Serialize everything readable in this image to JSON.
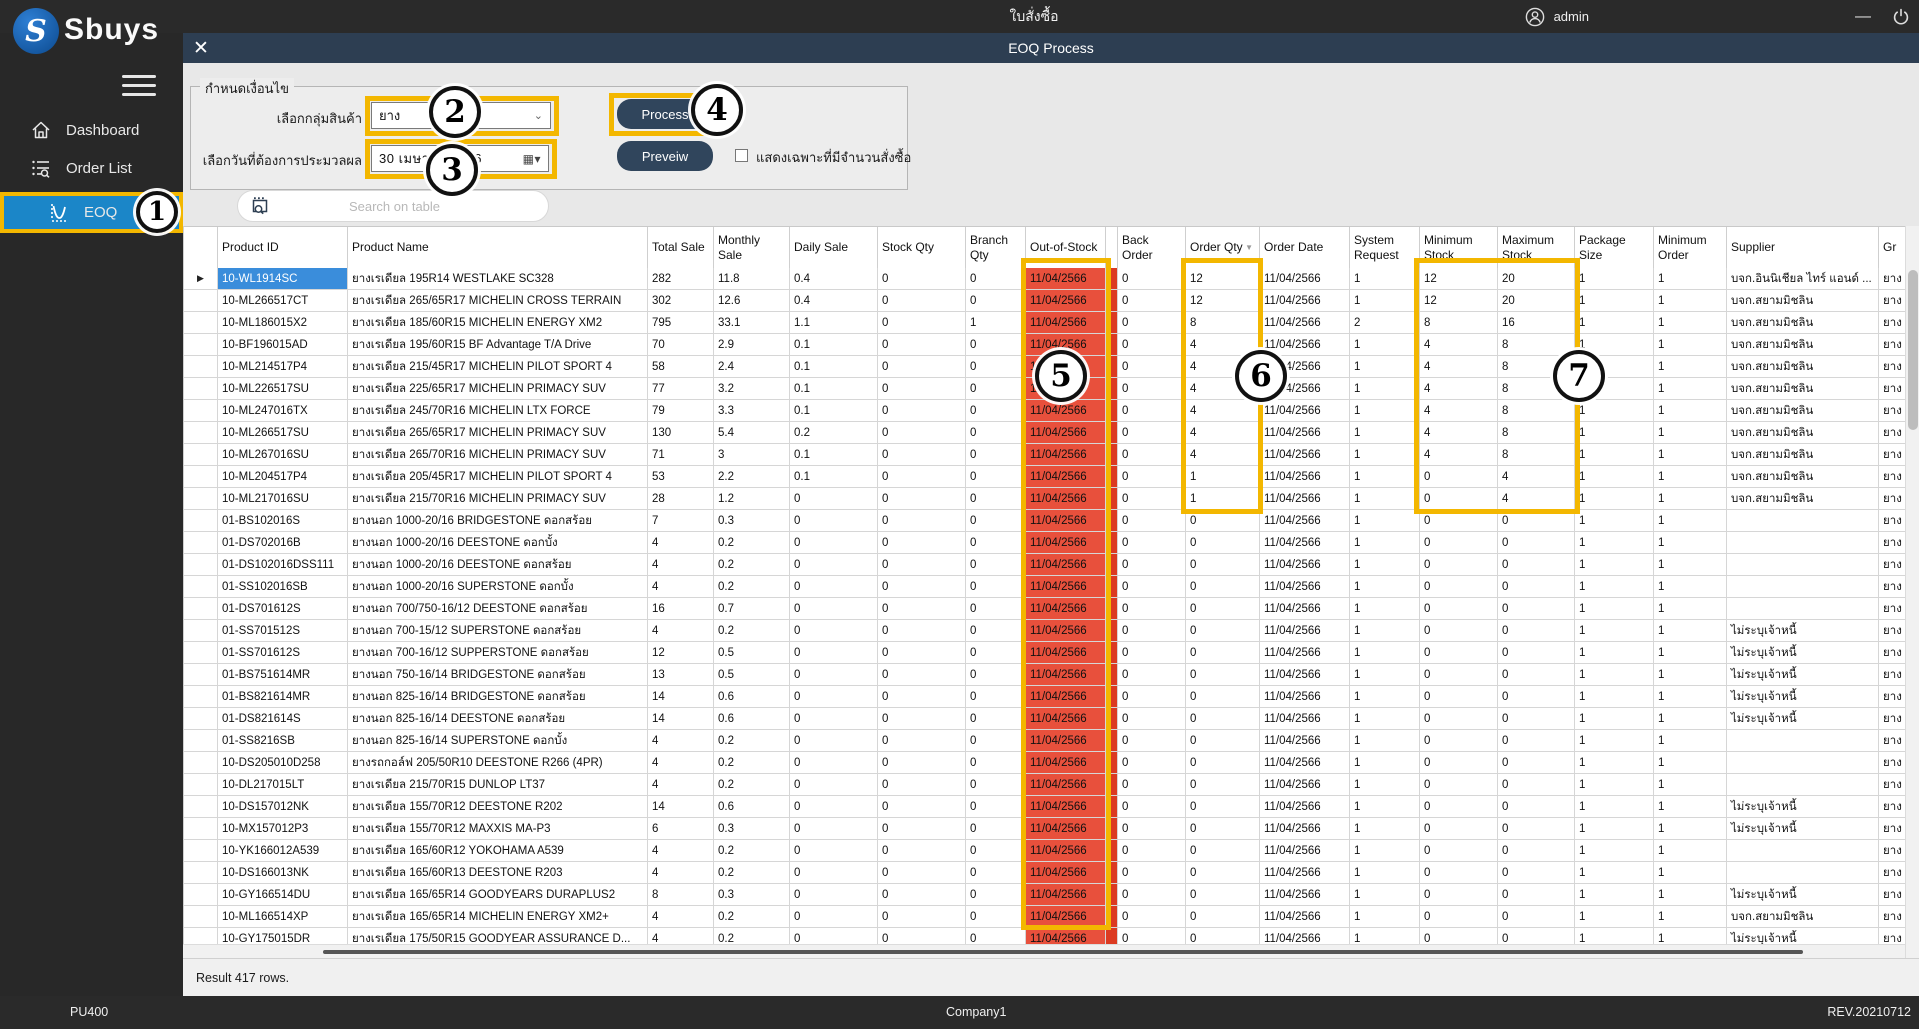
{
  "app": {
    "top_title": "ใบสั่งซื้อ",
    "user": "admin",
    "window_title": "EOQ Process",
    "result_text": "Result 417 rows.",
    "screen_code": "PU400",
    "company": "Company1",
    "revision": "REV.20210712"
  },
  "brand": {
    "name": "Sbuys",
    "initial": "S"
  },
  "sidebar": {
    "items": [
      {
        "label": "Dashboard"
      },
      {
        "label": "Order List"
      },
      {
        "label": "EOQ",
        "active": true
      }
    ]
  },
  "form": {
    "legend": "กำหนดเงื่อนไข",
    "product_group_label": "เลือกกลุ่มสินค้า",
    "product_group_value": "ยาง",
    "date_label": "เลือกวันที่ต้องการประมวลผล",
    "date_value": "30   เมษายน   2566",
    "process_label": "Process",
    "preview_label": "Preveiw",
    "checkbox_label": "แสดงเฉพาะที่มีจำนวนสั่งซื้อ",
    "checkbox_checked": false,
    "search_placeholder": "Search on table"
  },
  "table": {
    "columns": [
      "",
      "Product ID",
      "Product Name",
      "Total Sale",
      "Monthly Sale",
      "Daily Sale",
      "Stock Qty",
      "Branch Qty",
      "Out-of-Stock",
      "",
      "Back Order",
      "Order Qty",
      "Order Date",
      "System Request",
      "Minimum Stock",
      "Maximum Stock",
      "Package Size",
      "Minimum Order",
      "Supplier",
      "Gr"
    ],
    "sorted_column": "Order Qty",
    "rows": [
      [
        "10-WL1914SC",
        "ยางเรเดียล 195R14 WESTLAKE SC328",
        "282",
        "11.8",
        "0.4",
        "0",
        "0",
        "11/04/2566",
        "0",
        "12",
        "11/04/2566",
        "1",
        "12",
        "20",
        "1",
        "1",
        "บจก.อินนิเชียล ไทร์ แอนด์ ...",
        "ยาง"
      ],
      [
        "10-ML266517CT",
        "ยางเรเดียล 265/65R17 MICHELIN CROSS TERRAIN",
        "302",
        "12.6",
        "0.4",
        "0",
        "0",
        "11/04/2566",
        "0",
        "12",
        "11/04/2566",
        "1",
        "12",
        "20",
        "1",
        "1",
        "บจก.สยามมิชลิน",
        "ยาง"
      ],
      [
        "10-ML186015X2",
        "ยางเรเดียล 185/60R15 MICHELIN ENERGY XM2",
        "795",
        "33.1",
        "1.1",
        "0",
        "1",
        "11/04/2566",
        "0",
        "8",
        "11/04/2566",
        "2",
        "8",
        "16",
        "1",
        "1",
        "บจก.สยามมิชลิน",
        "ยาง"
      ],
      [
        "10-BF196015AD",
        "ยางเรเดียล 195/60R15 BF Advantage T/A Drive",
        "70",
        "2.9",
        "0.1",
        "0",
        "0",
        "11/04/2566",
        "0",
        "4",
        "11/04/2566",
        "1",
        "4",
        "8",
        "1",
        "1",
        "บจก.สยามมิชลิน",
        "ยาง"
      ],
      [
        "10-ML214517P4",
        "ยางเรเดียล 215/45R17 MICHELIN PILOT SPORT 4",
        "58",
        "2.4",
        "0.1",
        "0",
        "0",
        "11/04/2566",
        "0",
        "4",
        "11/04/2566",
        "1",
        "4",
        "8",
        "1",
        "1",
        "บจก.สยามมิชลิน",
        "ยาง"
      ],
      [
        "10-ML226517SU",
        "ยางเรเดียล 225/65R17 MICHELIN PRIMACY SUV",
        "77",
        "3.2",
        "0.1",
        "0",
        "0",
        "11/04/2566",
        "0",
        "4",
        "11/04/2566",
        "1",
        "4",
        "8",
        "1",
        "1",
        "บจก.สยามมิชลิน",
        "ยาง"
      ],
      [
        "10-ML247016TX",
        "ยางเรเดียล 245/70R16 MICHELIN LTX FORCE",
        "79",
        "3.3",
        "0.1",
        "0",
        "0",
        "11/04/2566",
        "0",
        "4",
        "11/04/2566",
        "1",
        "4",
        "8",
        "1",
        "1",
        "บจก.สยามมิชลิน",
        "ยาง"
      ],
      [
        "10-ML266517SU",
        "ยางเรเดียล 265/65R17 MICHELIN PRIMACY SUV",
        "130",
        "5.4",
        "0.2",
        "0",
        "0",
        "11/04/2566",
        "0",
        "4",
        "11/04/2566",
        "1",
        "4",
        "8",
        "1",
        "1",
        "บจก.สยามมิชลิน",
        "ยาง"
      ],
      [
        "10-ML267016SU",
        "ยางเรเดียล 265/70R16 MICHELIN PRIMACY SUV",
        "71",
        "3",
        "0.1",
        "0",
        "0",
        "11/04/2566",
        "0",
        "4",
        "11/04/2566",
        "1",
        "4",
        "8",
        "1",
        "1",
        "บจก.สยามมิชลิน",
        "ยาง"
      ],
      [
        "10-ML204517P4",
        "ยางเรเดียล 205/45R17 MICHELIN PILOT SPORT 4",
        "53",
        "2.2",
        "0.1",
        "0",
        "0",
        "11/04/2566",
        "0",
        "1",
        "11/04/2566",
        "1",
        "0",
        "4",
        "1",
        "1",
        "บจก.สยามมิชลิน",
        "ยาง"
      ],
      [
        "10-ML217016SU",
        "ยางเรเดียล 215/70R16 MICHELIN PRIMACY SUV",
        "28",
        "1.2",
        "0",
        "0",
        "0",
        "11/04/2566",
        "0",
        "1",
        "11/04/2566",
        "1",
        "0",
        "4",
        "1",
        "1",
        "บจก.สยามมิชลิน",
        "ยาง"
      ],
      [
        "01-BS102016S",
        "ยางนอก 1000-20/16 BRIDGESTONE ดอกสร้อย",
        "7",
        "0.3",
        "0",
        "0",
        "0",
        "11/04/2566",
        "0",
        "0",
        "11/04/2566",
        "1",
        "0",
        "0",
        "1",
        "1",
        "",
        "ยาง"
      ],
      [
        "01-DS702016B",
        "ยางนอก 1000-20/16 DEESTONE ดอกบั้ง",
        "4",
        "0.2",
        "0",
        "0",
        "0",
        "11/04/2566",
        "0",
        "0",
        "11/04/2566",
        "1",
        "0",
        "0",
        "1",
        "1",
        "",
        "ยาง"
      ],
      [
        "01-DS102016DSS111",
        "ยางนอก 1000-20/16 DEESTONE ดอกสร้อย",
        "4",
        "0.2",
        "0",
        "0",
        "0",
        "11/04/2566",
        "0",
        "0",
        "11/04/2566",
        "1",
        "0",
        "0",
        "1",
        "1",
        "",
        "ยาง"
      ],
      [
        "01-SS102016SB",
        "ยางนอก 1000-20/16 SUPERSTONE ดอกบั้ง",
        "4",
        "0.2",
        "0",
        "0",
        "0",
        "11/04/2566",
        "0",
        "0",
        "11/04/2566",
        "1",
        "0",
        "0",
        "1",
        "1",
        "",
        "ยาง"
      ],
      [
        "01-DS701612S",
        "ยางนอก 700/750-16/12 DEESTONE ดอกสร้อย",
        "16",
        "0.7",
        "0",
        "0",
        "0",
        "11/04/2566",
        "0",
        "0",
        "11/04/2566",
        "1",
        "0",
        "0",
        "1",
        "1",
        "",
        "ยาง"
      ],
      [
        "01-SS701512S",
        "ยางนอก 700-15/12 SUPERSTONE ดอกสร้อย",
        "4",
        "0.2",
        "0",
        "0",
        "0",
        "11/04/2566",
        "0",
        "0",
        "11/04/2566",
        "1",
        "0",
        "0",
        "1",
        "1",
        "ไม่ระบุเจ้าหนี้",
        "ยาง"
      ],
      [
        "01-SS701612S",
        "ยางนอก 700-16/12 SUPPERSTONE ดอกสร้อย",
        "12",
        "0.5",
        "0",
        "0",
        "0",
        "11/04/2566",
        "0",
        "0",
        "11/04/2566",
        "1",
        "0",
        "0",
        "1",
        "1",
        "ไม่ระบุเจ้าหนี้",
        "ยาง"
      ],
      [
        "01-BS751614MR",
        "ยางนอก 750-16/14 BRIDGESTONE ดอกสร้อย",
        "13",
        "0.5",
        "0",
        "0",
        "0",
        "11/04/2566",
        "0",
        "0",
        "11/04/2566",
        "1",
        "0",
        "0",
        "1",
        "1",
        "ไม่ระบุเจ้าหนี้",
        "ยาง"
      ],
      [
        "01-BS821614MR",
        "ยางนอก 825-16/14 BRIDGESTONE ดอกสร้อย",
        "14",
        "0.6",
        "0",
        "0",
        "0",
        "11/04/2566",
        "0",
        "0",
        "11/04/2566",
        "1",
        "0",
        "0",
        "1",
        "1",
        "ไม่ระบุเจ้าหนี้",
        "ยาง"
      ],
      [
        "01-DS821614S",
        "ยางนอก 825-16/14 DEESTONE ดอกสร้อย",
        "14",
        "0.6",
        "0",
        "0",
        "0",
        "11/04/2566",
        "0",
        "0",
        "11/04/2566",
        "1",
        "0",
        "0",
        "1",
        "1",
        "ไม่ระบุเจ้าหนี้",
        "ยาง"
      ],
      [
        "01-SS8216SB",
        "ยางนอก 825-16/14 SUPERSTONE ดอกบั้ง",
        "4",
        "0.2",
        "0",
        "0",
        "0",
        "11/04/2566",
        "0",
        "0",
        "11/04/2566",
        "1",
        "0",
        "0",
        "1",
        "1",
        "",
        "ยาง"
      ],
      [
        "10-DS205010D258",
        "ยางรถกอล์ฟ 205/50R10 DEESTONE R266 (4PR)",
        "4",
        "0.2",
        "0",
        "0",
        "0",
        "11/04/2566",
        "0",
        "0",
        "11/04/2566",
        "1",
        "0",
        "0",
        "1",
        "1",
        "",
        "ยาง"
      ],
      [
        "10-DL217015LT",
        "ยางเรเดียล  215/70R15 DUNLOP LT37",
        "4",
        "0.2",
        "0",
        "0",
        "0",
        "11/04/2566",
        "0",
        "0",
        "11/04/2566",
        "1",
        "0",
        "0",
        "1",
        "1",
        "",
        "ยาง"
      ],
      [
        "10-DS157012NK",
        "ยางเรเดียล 155/70R12 DEESTONE R202",
        "14",
        "0.6",
        "0",
        "0",
        "0",
        "11/04/2566",
        "0",
        "0",
        "11/04/2566",
        "1",
        "0",
        "0",
        "1",
        "1",
        "ไม่ระบุเจ้าหนี้",
        "ยาง"
      ],
      [
        "10-MX157012P3",
        "ยางเรเดียล 155/70R12 MAXXIS MA-P3",
        "6",
        "0.3",
        "0",
        "0",
        "0",
        "11/04/2566",
        "0",
        "0",
        "11/04/2566",
        "1",
        "0",
        "0",
        "1",
        "1",
        "ไม่ระบุเจ้าหนี้",
        "ยาง"
      ],
      [
        "10-YK166012A539",
        "ยางเรเดียล 165/60R12 YOKOHAMA A539",
        "4",
        "0.2",
        "0",
        "0",
        "0",
        "11/04/2566",
        "0",
        "0",
        "11/04/2566",
        "1",
        "0",
        "0",
        "1",
        "1",
        "",
        "ยาง"
      ],
      [
        "10-DS166013NK",
        "ยางเรเดียล 165/60R13 DEESTONE R203",
        "4",
        "0.2",
        "0",
        "0",
        "0",
        "11/04/2566",
        "0",
        "0",
        "11/04/2566",
        "1",
        "0",
        "0",
        "1",
        "1",
        "",
        "ยาง"
      ],
      [
        "10-GY166514DU",
        "ยางเรเดียล 165/65R14 GOODYEARS DURAPLUS2",
        "8",
        "0.3",
        "0",
        "0",
        "0",
        "11/04/2566",
        "0",
        "0",
        "11/04/2566",
        "1",
        "0",
        "0",
        "1",
        "1",
        "ไม่ระบุเจ้าหนี้",
        "ยาง"
      ],
      [
        "10-ML166514XP",
        "ยางเรเดียล 165/65R14 MICHELIN ENERGY XM2+",
        "4",
        "0.2",
        "0",
        "0",
        "0",
        "11/04/2566",
        "0",
        "0",
        "11/04/2566",
        "1",
        "0",
        "0",
        "1",
        "1",
        "บจก.สยามมิชลิน",
        "ยาง"
      ],
      [
        "10-GY175015DR",
        "ยางเรเดียล 175/50R15 GOODYEAR ASSURANCE D...",
        "4",
        "0.2",
        "0",
        "0",
        "0",
        "11/04/2566",
        "0",
        "0",
        "11/04/2566",
        "1",
        "0",
        "0",
        "1",
        "1",
        "ไม่ระบุเจ้าหนี้",
        "ยาง"
      ]
    ]
  },
  "annotations": {
    "circles": [
      "1",
      "2",
      "3",
      "4",
      "5",
      "6",
      "7"
    ]
  },
  "colors": {
    "highlight_yellow": "#f3b700",
    "out_of_stock_red": "#e8503c",
    "out_of_stock_strip_red": "#dc3b22",
    "selected_cell_blue": "#3a8ddb",
    "active_nav_blue": "#1b86c8",
    "title_bar_navy": "#2d3e52",
    "button_navy": "#30455c",
    "bar_dark": "#2a2a2a"
  }
}
